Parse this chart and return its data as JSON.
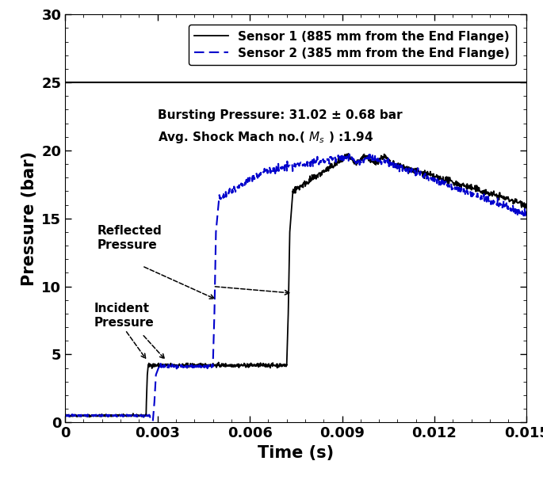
{
  "xlabel": "Time (s)",
  "ylabel": "Pressure (bar)",
  "xlim": [
    0,
    0.015
  ],
  "ylim": [
    0,
    30
  ],
  "xticks": [
    0,
    0.003,
    0.006,
    0.009,
    0.012,
    0.015
  ],
  "yticks": [
    0,
    5,
    10,
    15,
    20,
    25,
    30
  ],
  "legend_labels": [
    "Sensor 1 (885 mm from the End Flange)",
    "Sensor 2 (385 mm from the End Flange)"
  ],
  "sensor1_color": "#000000",
  "sensor2_color": "#0000cc",
  "annotation_text1": "Bursting Pressure: 31.02 ± 0.68 bar",
  "annotation_text2": "Avg. Shock Mach no.( $M_s$ ) :1.94",
  "incident_label": "Incident\nPressure",
  "reflected_label": "Reflected\nPressure",
  "hline_y": 25
}
